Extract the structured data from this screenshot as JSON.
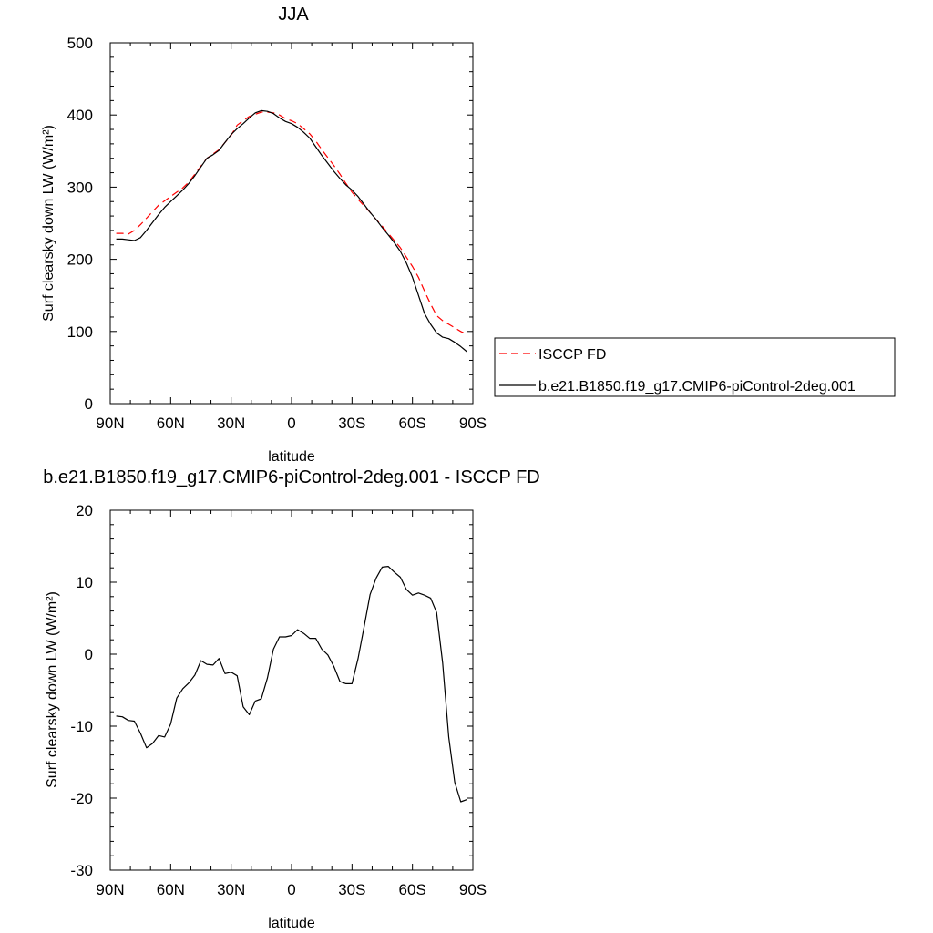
{
  "chart_data": [
    {
      "type": "line",
      "title": "JJA",
      "xlabel": "latitude",
      "ylabel": "Surf clearsky down LW (W/m²)",
      "xlim": [
        90,
        -90
      ],
      "ylim": [
        0,
        500
      ],
      "x_tick_labels": [
        "90N",
        "60N",
        "30N",
        "0",
        "30S",
        "60S",
        "90S"
      ],
      "y_tick_labels": [
        "0",
        "100",
        "200",
        "300",
        "400",
        "500"
      ],
      "legend_position": "right",
      "series": [
        {
          "name": "ISCCP FD",
          "color": "#ff0000",
          "dashed": true,
          "x": [
            87,
            84,
            81,
            78,
            75,
            72,
            69,
            66,
            63,
            60,
            57,
            54,
            51,
            48,
            45,
            42,
            39,
            36,
            33,
            30,
            27,
            24,
            21,
            18,
            15,
            12,
            9,
            6,
            3,
            0,
            -3,
            -6,
            -9,
            -12,
            -15,
            -18,
            -21,
            -24,
            -27,
            -30,
            -33,
            -36,
            -39,
            -42,
            -45,
            -48,
            -51,
            -54,
            -57,
            -60,
            -63,
            -66,
            -69,
            -72,
            -75,
            -78,
            -81,
            -84,
            -87
          ],
          "y": [
            236,
            236,
            235,
            240,
            248,
            257,
            266,
            275,
            281,
            287,
            293,
            299,
            307,
            318,
            329,
            340,
            346,
            352,
            362,
            372,
            386,
            392,
            398,
            401,
            404,
            404,
            403,
            400,
            395,
            392,
            388,
            381,
            374,
            364,
            352,
            341,
            330,
            318,
            305,
            293,
            283,
            274,
            265,
            255,
            246,
            236,
            226,
            216,
            203,
            190,
            175,
            156,
            138,
            122,
            115,
            110,
            105,
            100,
            96
          ]
        },
        {
          "name": "b.e21.B1850.f19_g17.CMIP6-piControl-2deg.001",
          "color": "#000000",
          "dashed": false,
          "x": [
            87,
            84,
            81,
            78,
            75,
            72,
            69,
            66,
            63,
            60,
            57,
            54,
            51,
            48,
            45,
            42,
            39,
            36,
            33,
            30,
            27,
            24,
            21,
            18,
            15,
            12,
            9,
            6,
            3,
            0,
            -3,
            -6,
            -9,
            -12,
            -15,
            -18,
            -21,
            -24,
            -27,
            -30,
            -33,
            -36,
            -39,
            -42,
            -45,
            -48,
            -51,
            -54,
            -57,
            -60,
            -63,
            -66,
            -69,
            -72,
            -75,
            -78,
            -81,
            -84,
            -87
          ],
          "y": [
            228,
            228,
            227,
            226,
            230,
            240,
            251,
            262,
            272,
            280,
            288,
            296,
            305,
            316,
            328,
            340,
            345,
            351,
            362,
            373,
            381,
            388,
            396,
            403,
            406,
            405,
            402,
            396,
            391,
            388,
            383,
            376,
            368,
            356,
            344,
            333,
            322,
            312,
            303,
            296,
            287,
            276,
            265,
            255,
            244,
            234,
            223,
            211,
            195,
            175,
            150,
            125,
            110,
            98,
            92,
            90,
            85,
            79,
            72
          ]
        }
      ]
    },
    {
      "type": "line",
      "title": "b.e21.B1850.f19_g17.CMIP6-piControl-2deg.001 - ISCCP FD",
      "xlabel": "latitude",
      "ylabel": "Surf clearsky down LW (W/m²)",
      "xlim": [
        90,
        -90
      ],
      "ylim": [
        -30,
        20
      ],
      "x_tick_labels": [
        "90N",
        "60N",
        "30N",
        "0",
        "30S",
        "60S",
        "90S"
      ],
      "y_tick_labels": [
        "-30",
        "-20",
        "-10",
        "0",
        "10",
        "20"
      ],
      "series": [
        {
          "color": "#000000",
          "dashed": false,
          "x": [
            87,
            84,
            81,
            78,
            75,
            72,
            69,
            66,
            63,
            60,
            57,
            54,
            51,
            48,
            45,
            42,
            39,
            36,
            33,
            30,
            27,
            24,
            21,
            18,
            15,
            12,
            9,
            6,
            3,
            0,
            -3,
            -6,
            -9,
            -12,
            -15,
            -18,
            -21,
            -24,
            -27,
            -30,
            -33,
            -36,
            -39,
            -42,
            -45,
            -48,
            -51,
            -54,
            -57,
            -60,
            -63,
            -66,
            -69,
            -72,
            -75,
            -78,
            -81,
            -84,
            -87
          ],
          "y": [
            -8.6,
            -8.7,
            -9.2,
            -9.3,
            -11.0,
            -13.0,
            -12.4,
            -11.3,
            -11.5,
            -9.7,
            -6.1,
            -4.8,
            -4.0,
            -2.9,
            -0.9,
            -1.4,
            -1.5,
            -0.6,
            -2.7,
            -2.5,
            -3.0,
            -7.3,
            -8.4,
            -6.5,
            -6.2,
            -3.3,
            0.7,
            2.4,
            2.4,
            2.6,
            3.4,
            2.9,
            2.2,
            2.2,
            0.7,
            -0.1,
            -1.7,
            -3.8,
            -4.1,
            -4.1,
            -0.6,
            3.8,
            8.3,
            10.6,
            12.1,
            12.2,
            11.4,
            10.7,
            9.0,
            8.2,
            8.5,
            8.2,
            7.8,
            5.8,
            -1.2,
            -11.5,
            -17.8,
            -20.5,
            -20.2
          ]
        }
      ]
    }
  ]
}
